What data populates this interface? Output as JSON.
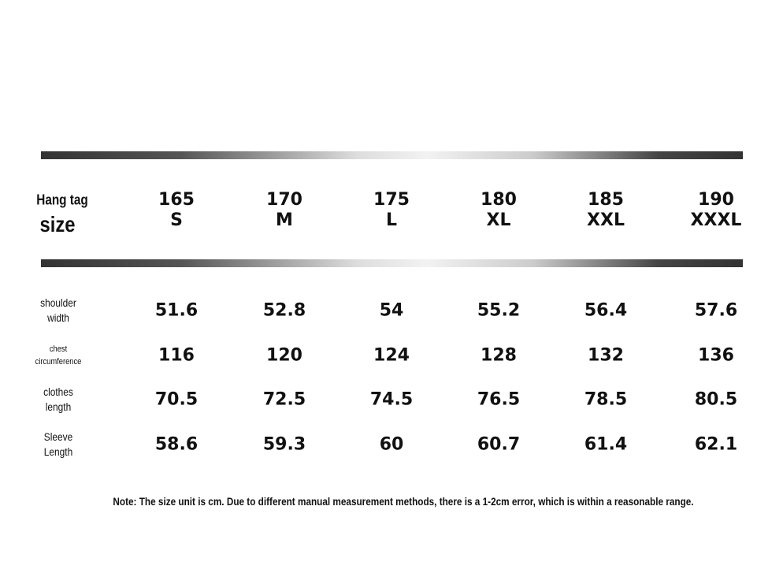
{
  "header": {
    "label": [
      "Hang tag",
      "size"
    ],
    "columns": [
      {
        "height": 165,
        "size": "S"
      },
      {
        "height": 170,
        "size": "M"
      },
      {
        "height": 175,
        "size": "L"
      },
      {
        "height": 180,
        "size": "XL"
      },
      {
        "height": 185,
        "size": "XXL"
      },
      {
        "height": 190,
        "size": "XXXL"
      }
    ]
  },
  "table": {
    "rows": [
      {
        "label": [
          "shoulder",
          "width"
        ],
        "values": [
          51.6,
          52.8,
          54,
          55.2,
          56.4,
          57.6
        ]
      },
      {
        "label": [
          "chest",
          "circumference"
        ],
        "values": [
          116,
          120,
          124,
          128,
          132,
          136
        ]
      },
      {
        "label": [
          "clothes",
          "length"
        ],
        "values": [
          70.5,
          72.5,
          74.5,
          76.5,
          78.5,
          80.5
        ]
      },
      {
        "label": [
          "Sleeve",
          "Length"
        ],
        "values": [
          58.6,
          59.3,
          60,
          60.7,
          61.4,
          62.1
        ]
      }
    ]
  },
  "note": "Note: The size unit is cm. Due to different manual measurement methods, there is a 1-2cm error, which is within a reasonable range."
}
